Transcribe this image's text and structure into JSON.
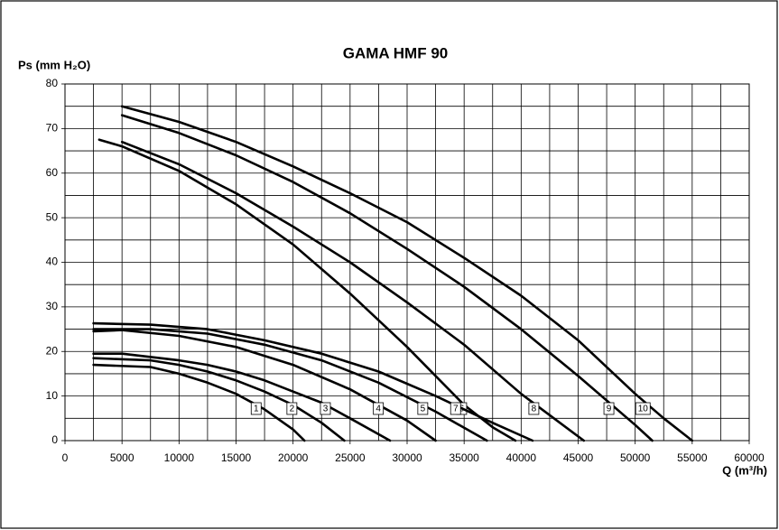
{
  "chart_data": {
    "type": "line",
    "title": "GAMA HMF 90",
    "y_label": "Ps (mm H₂O)",
    "x_label": "Q (m³/h)",
    "xlim": [
      0,
      60000
    ],
    "ylim": [
      0,
      80
    ],
    "xticks": [
      0,
      5000,
      10000,
      15000,
      20000,
      25000,
      30000,
      35000,
      40000,
      45000,
      50000,
      55000,
      60000
    ],
    "yticks": [
      0,
      10,
      20,
      30,
      40,
      50,
      60,
      70,
      80
    ],
    "xgrid": [
      0,
      2500,
      5000,
      7500,
      10000,
      12500,
      15000,
      17500,
      20000,
      22500,
      25000,
      27500,
      30000,
      32500,
      35000,
      37500,
      40000,
      42500,
      45000,
      47500,
      50000,
      52500,
      55000,
      57500,
      60000
    ],
    "ygrid": [
      0,
      5,
      10,
      15,
      20,
      25,
      30,
      35,
      40,
      45,
      50,
      55,
      60,
      65,
      70,
      75,
      80
    ],
    "grid": true,
    "series": [
      {
        "name": "1",
        "color": "#000000",
        "x": [
          2500,
          7500,
          10000,
          12500,
          15000,
          17500,
          20000,
          21000
        ],
        "values": [
          17,
          16.5,
          15,
          13,
          10.5,
          7,
          2.5,
          0
        ]
      },
      {
        "name": "2",
        "color": "#000000",
        "x": [
          2500,
          7500,
          10000,
          12500,
          15000,
          17500,
          20000,
          22500,
          24500
        ],
        "values": [
          18.5,
          18,
          17,
          15.5,
          13.5,
          11,
          8,
          4,
          0
        ]
      },
      {
        "name": "3",
        "color": "#000000",
        "x": [
          2500,
          5000,
          10000,
          12500,
          15000,
          17500,
          20000,
          22500,
          25000,
          28500
        ],
        "values": [
          19.5,
          19.5,
          18,
          17,
          15.5,
          13.5,
          11,
          8.5,
          5,
          0
        ]
      },
      {
        "name": "4",
        "color": "#000000",
        "x": [
          2500,
          5000,
          10000,
          15000,
          20000,
          25000,
          30000,
          32500
        ],
        "values": [
          24.5,
          24.8,
          23.5,
          21,
          17,
          11.5,
          4.5,
          0
        ]
      },
      {
        "name": "5",
        "color": "#000000",
        "x": [
          2500,
          7500,
          12500,
          17500,
          22500,
          27500,
          32500,
          37000
        ],
        "values": [
          25,
          25,
          24,
          21.5,
          18,
          13,
          6.5,
          0
        ]
      },
      {
        "name": "6",
        "color": "#000000",
        "x": [
          3000,
          5000,
          10000,
          15000,
          20000,
          25000,
          30000,
          35000,
          37500,
          39500
        ],
        "values": [
          67.5,
          66,
          60.5,
          53,
          44,
          33,
          21,
          8,
          3,
          0
        ]
      },
      {
        "name": "7",
        "color": "#000000",
        "x": [
          2500,
          7500,
          12500,
          17500,
          22500,
          27500,
          32500,
          37500,
          41000
        ],
        "values": [
          26.3,
          26,
          25,
          22.5,
          19.5,
          15.5,
          10,
          4,
          0
        ]
      },
      {
        "name": "8",
        "color": "#000000",
        "x": [
          5000,
          10000,
          15000,
          20000,
          25000,
          30000,
          35000,
          40000,
          45500
        ],
        "values": [
          67,
          62,
          55.5,
          48,
          40,
          31,
          21.5,
          10.5,
          0
        ]
      },
      {
        "name": "9",
        "color": "#000000",
        "x": [
          5000,
          10000,
          15000,
          20000,
          25000,
          30000,
          35000,
          40000,
          45000,
          50000,
          51500
        ],
        "values": [
          73,
          69,
          64,
          58,
          51,
          43,
          34.5,
          25,
          14.5,
          3.5,
          0
        ]
      },
      {
        "name": "10",
        "color": "#000000",
        "x": [
          5000,
          10000,
          15000,
          20000,
          25000,
          30000,
          35000,
          40000,
          45000,
          50000,
          52500,
          55000
        ],
        "values": [
          75,
          71.5,
          67,
          61.5,
          55.5,
          49,
          41,
          32.5,
          22.5,
          10.5,
          5,
          0
        ]
      }
    ]
  }
}
